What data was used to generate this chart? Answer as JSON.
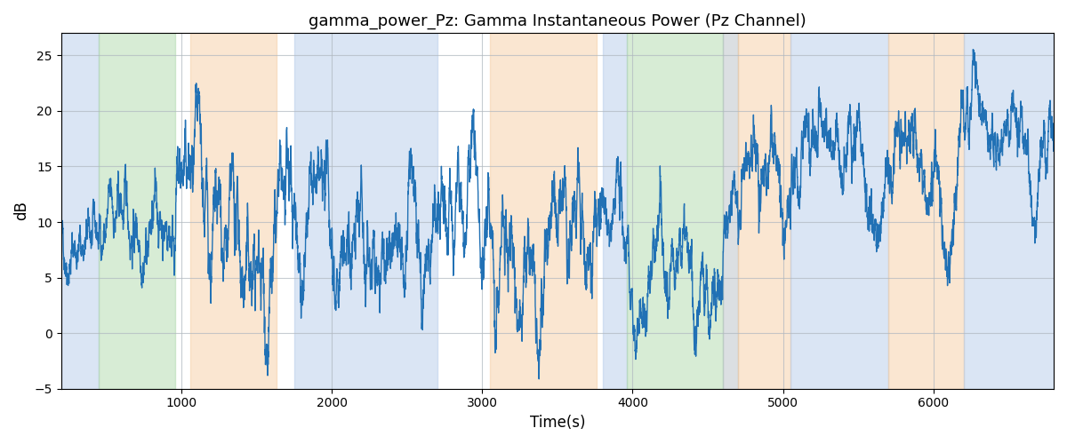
{
  "title": "gamma_power_Pz: Gamma Instantaneous Power (Pz Channel)",
  "xlabel": "Time(s)",
  "ylabel": "dB",
  "ylim": [
    -5,
    27
  ],
  "xlim": [
    200,
    6800
  ],
  "line_color": "#2171b5",
  "line_width": 1.0,
  "bg_regions": [
    {
      "xmin": 200,
      "xmax": 450,
      "color": "#aec6e8",
      "alpha": 0.45
    },
    {
      "xmin": 450,
      "xmax": 960,
      "color": "#a8d5a2",
      "alpha": 0.45
    },
    {
      "xmin": 1060,
      "xmax": 1630,
      "color": "#f5c89a",
      "alpha": 0.45
    },
    {
      "xmin": 1750,
      "xmax": 2700,
      "color": "#aec6e8",
      "alpha": 0.45
    },
    {
      "xmin": 3050,
      "xmax": 3760,
      "color": "#f5c89a",
      "alpha": 0.45
    },
    {
      "xmin": 3800,
      "xmax": 3960,
      "color": "#aec6e8",
      "alpha": 0.45
    },
    {
      "xmin": 3960,
      "xmax": 4600,
      "color": "#a8d5a2",
      "alpha": 0.45
    },
    {
      "xmin": 4600,
      "xmax": 4700,
      "color": "#b0b8c0",
      "alpha": 0.45
    },
    {
      "xmin": 4700,
      "xmax": 5050,
      "color": "#f5c89a",
      "alpha": 0.45
    },
    {
      "xmin": 5050,
      "xmax": 5700,
      "color": "#aec6e8",
      "alpha": 0.45
    },
    {
      "xmin": 5700,
      "xmax": 6200,
      "color": "#f5c89a",
      "alpha": 0.45
    },
    {
      "xmin": 6200,
      "xmax": 6800,
      "color": "#aec6e8",
      "alpha": 0.45
    }
  ],
  "grid_color": "#b0b8c0",
  "grid_alpha": 0.7,
  "figsize": [
    12,
    5
  ],
  "dpi": 100,
  "seed": 42
}
